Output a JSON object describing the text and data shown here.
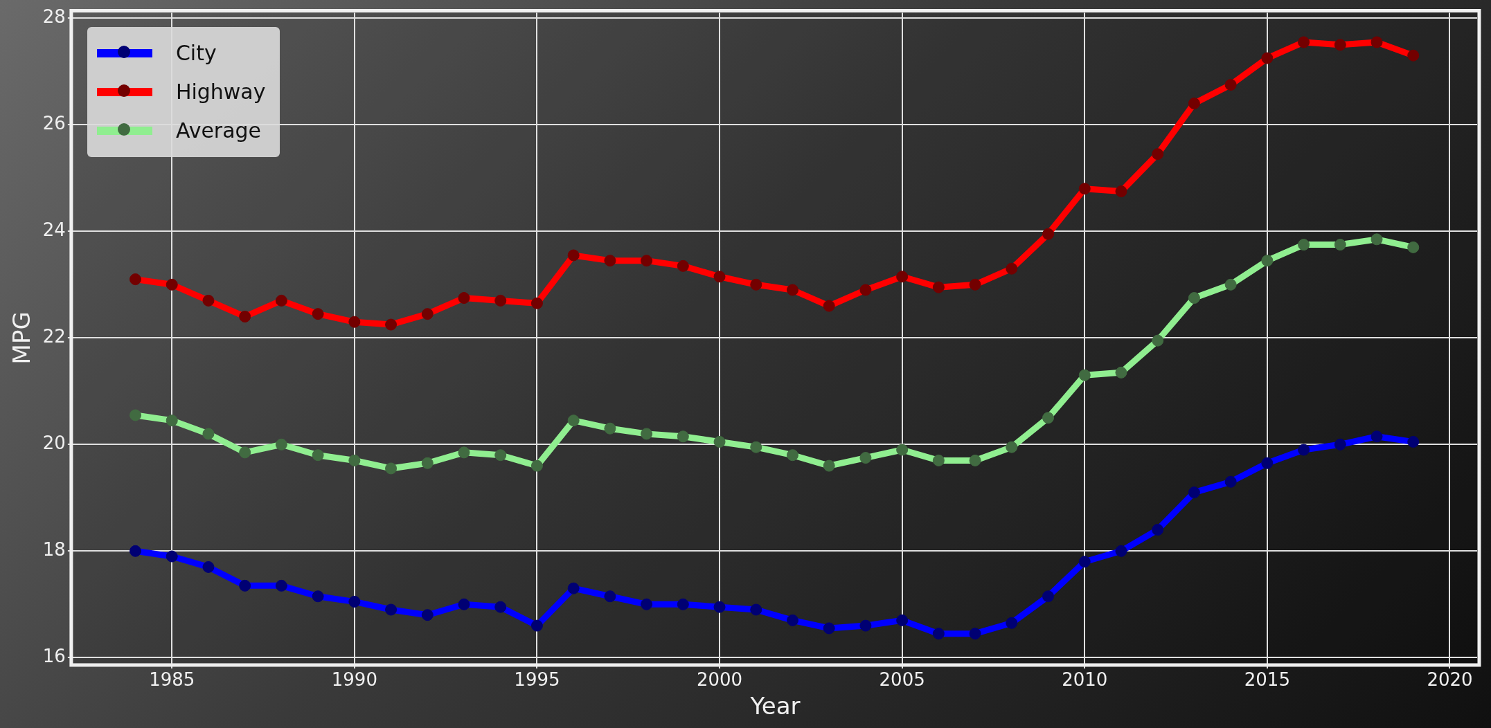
{
  "chart_data": {
    "type": "line",
    "xlabel": "Year",
    "ylabel": "MPG",
    "x": [
      1984,
      1985,
      1986,
      1987,
      1988,
      1989,
      1990,
      1991,
      1992,
      1993,
      1994,
      1995,
      1996,
      1997,
      1998,
      1999,
      2000,
      2001,
      2002,
      2003,
      2004,
      2005,
      2006,
      2007,
      2008,
      2009,
      2010,
      2011,
      2012,
      2013,
      2014,
      2015,
      2016,
      2017,
      2018,
      2019
    ],
    "series": [
      {
        "name": "City",
        "color": "#0000ff",
        "values": [
          18.0,
          17.9,
          17.7,
          17.35,
          17.35,
          17.15,
          17.05,
          16.9,
          16.8,
          17.0,
          16.95,
          16.6,
          17.3,
          17.15,
          17.0,
          17.0,
          16.95,
          16.9,
          16.7,
          16.55,
          16.6,
          16.7,
          16.45,
          16.45,
          16.65,
          17.15,
          17.8,
          18.0,
          18.4,
          19.1,
          19.3,
          19.65,
          19.9,
          20.0,
          20.15,
          20.05
        ]
      },
      {
        "name": "Highway",
        "color": "#ff0000",
        "values": [
          23.1,
          23.0,
          22.7,
          22.4,
          22.7,
          22.45,
          22.3,
          22.25,
          22.45,
          22.75,
          22.7,
          22.65,
          23.55,
          23.45,
          23.45,
          23.35,
          23.15,
          23.0,
          22.9,
          22.6,
          22.9,
          23.15,
          22.95,
          23.0,
          23.3,
          23.95,
          24.8,
          24.75,
          25.45,
          26.4,
          26.75,
          27.25,
          27.55,
          27.5,
          27.55,
          27.3
        ]
      },
      {
        "name": "Average",
        "color": "#90ee90",
        "values": [
          20.55,
          20.45,
          20.2,
          19.85,
          20.0,
          19.8,
          19.7,
          19.55,
          19.65,
          19.85,
          19.8,
          19.6,
          20.45,
          20.3,
          20.2,
          20.15,
          20.05,
          19.95,
          19.8,
          19.6,
          19.75,
          19.9,
          19.7,
          19.7,
          19.95,
          20.5,
          21.3,
          21.35,
          21.95,
          22.75,
          23.0,
          23.45,
          23.75,
          23.75,
          23.85,
          23.7
        ]
      }
    ],
    "xlim": [
      1982.3,
      2020.75
    ],
    "xticks": [
      1985,
      1990,
      1995,
      2000,
      2005,
      2010,
      2015,
      2020
    ],
    "ylim": [
      15.9,
      28.1
    ],
    "yticks": [
      16,
      18,
      20,
      22,
      24,
      26,
      28
    ],
    "grid": true,
    "legend": "top left",
    "marker": "circle",
    "line_style": "solid"
  }
}
